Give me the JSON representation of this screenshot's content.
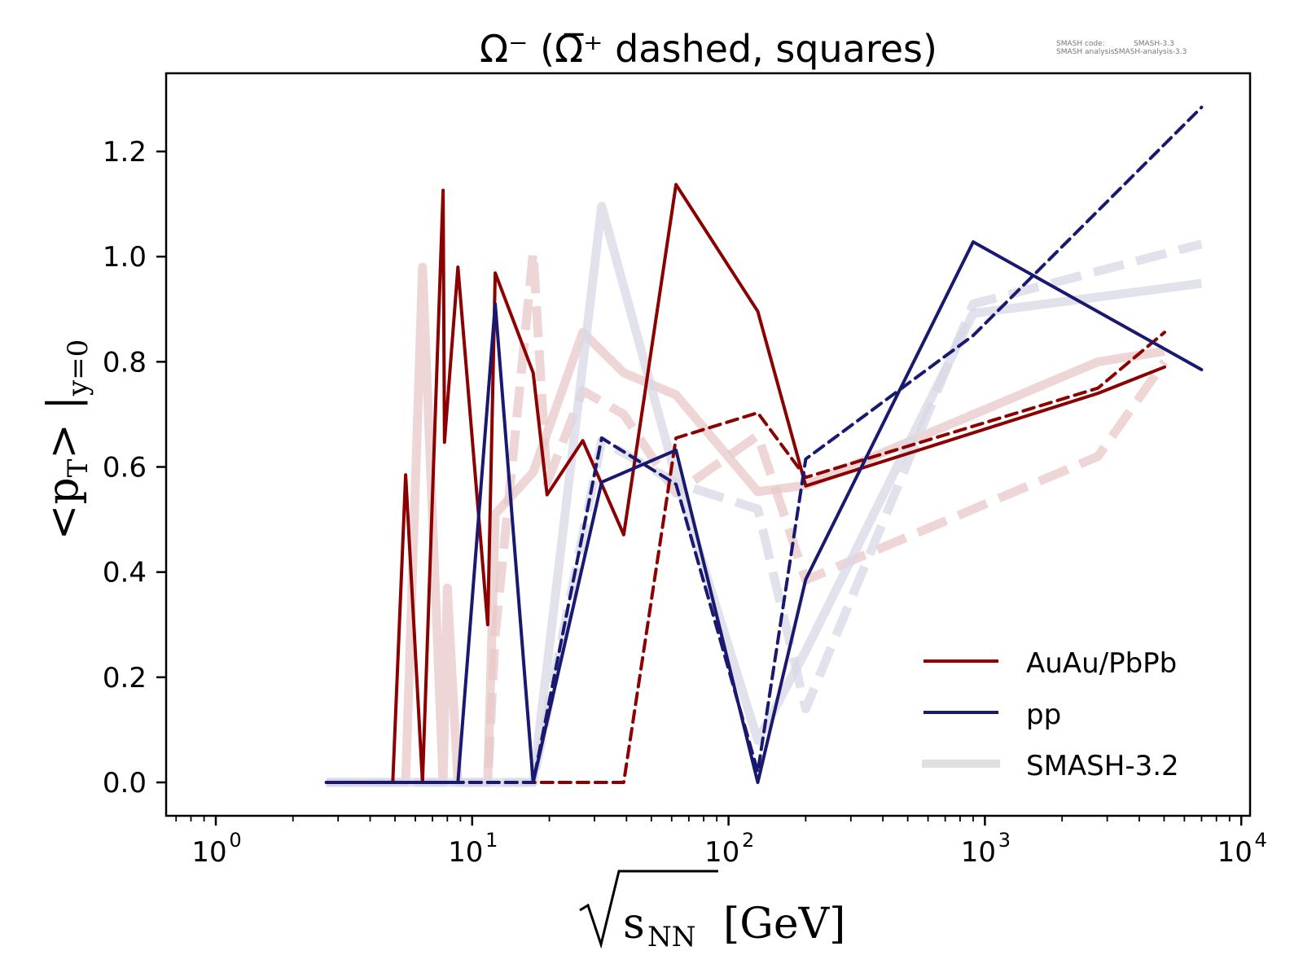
{
  "chart_data": {
    "type": "line",
    "title": "Ω⁻ (Ω̅⁺ dashed, squares)",
    "meta": {
      "line1_label": "SMASH code:",
      "line1_value": "SMASH-3.3",
      "line2_label": "SMASH analysis:",
      "line2_value": "SMASH-analysis-3.3"
    },
    "xlabel": {
      "main": "s",
      "sub": "NN",
      "unit": "[GeV]"
    },
    "ylabel": {
      "main": "<p",
      "sub1": "T",
      "mid": "> |",
      "sub2": "y=0"
    },
    "xscale": "log",
    "xlim": [
      0.7,
      10000
    ],
    "ylim": [
      -0.07,
      1.35
    ],
    "xticks": [
      {
        "value": 1,
        "base": "10",
        "exp": "0"
      },
      {
        "value": 10,
        "base": "10",
        "exp": "1"
      },
      {
        "value": 100,
        "base": "10",
        "exp": "2"
      },
      {
        "value": 1000,
        "base": "10",
        "exp": "3"
      },
      {
        "value": 10000,
        "base": "10",
        "exp": "4"
      }
    ],
    "yticks": [
      {
        "value": 0.0,
        "label": "0.0"
      },
      {
        "value": 0.2,
        "label": "0.2"
      },
      {
        "value": 0.4,
        "label": "0.4"
      },
      {
        "value": 0.6,
        "label": "0.6"
      },
      {
        "value": 0.8,
        "label": "0.8"
      },
      {
        "value": 1.0,
        "label": "1.0"
      },
      {
        "value": 1.2,
        "label": "1.2"
      }
    ],
    "grid": false,
    "legend_position": "lower-right",
    "legend": [
      {
        "label": "AuAu/PbPb",
        "color": "#8b0000",
        "style": "solid"
      },
      {
        "label": "pp",
        "color": "#191970",
        "style": "solid"
      },
      {
        "label": "SMASH-3.2",
        "color": "#e0e0e0",
        "style": "thick"
      }
    ],
    "series": [
      {
        "name": "SMASH-3.2 AuAu/PbPb Ω⁻",
        "group": "reference",
        "color": "#e8c8c8",
        "dashed": false,
        "points": [
          [
            2.7,
            0
          ],
          [
            4.9,
            0
          ],
          [
            5.5,
            0
          ],
          [
            6.4,
            0.98
          ],
          [
            7.7,
            0
          ],
          [
            8.0,
            0.37
          ],
          [
            8.8,
            0
          ],
          [
            11.5,
            0
          ],
          [
            12.3,
            0.51
          ],
          [
            17.3,
            0.59
          ],
          [
            27,
            0.856
          ],
          [
            39,
            0.779
          ],
          [
            62.4,
            0.737
          ],
          [
            130,
            0.553
          ],
          [
            200,
            0.565
          ],
          [
            2760,
            0.8
          ],
          [
            5020,
            0.82
          ]
        ]
      },
      {
        "name": "SMASH-3.2 AuAu/PbPb Ω̅⁺",
        "group": "reference",
        "color": "#e8c8c8",
        "dashed": true,
        "points": [
          [
            2.7,
            0
          ],
          [
            11.5,
            0
          ],
          [
            12.3,
            0.28
          ],
          [
            17.3,
            1.008
          ],
          [
            19.6,
            0.57
          ],
          [
            27,
            0.745
          ],
          [
            39,
            0.7
          ],
          [
            62.4,
            0.55
          ],
          [
            130,
            0.66
          ],
          [
            200,
            0.385
          ],
          [
            2760,
            0.62
          ],
          [
            5020,
            0.8
          ]
        ]
      },
      {
        "name": "SMASH-3.2 pp Ω⁻",
        "group": "reference",
        "color": "#d8d8e6",
        "dashed": false,
        "points": [
          [
            2.7,
            0
          ],
          [
            17.3,
            0
          ],
          [
            32,
            1.096
          ],
          [
            62.4,
            0.58
          ],
          [
            130,
            0.08
          ],
          [
            200,
            0.25
          ],
          [
            900,
            0.892
          ],
          [
            7000,
            0.949
          ]
        ]
      },
      {
        "name": "SMASH-3.2 pp Ω̅⁺",
        "group": "reference",
        "color": "#d8d8e6",
        "dashed": true,
        "points": [
          [
            2.7,
            0
          ],
          [
            17.3,
            0
          ],
          [
            32,
            0.65
          ],
          [
            62.4,
            0.57
          ],
          [
            130,
            0.52
          ],
          [
            200,
            0.14
          ],
          [
            900,
            0.91
          ],
          [
            7000,
            1.024
          ]
        ]
      },
      {
        "name": "AuAu/PbPb Ω⁻",
        "group": "main",
        "color": "#8b0000",
        "dashed": false,
        "points": [
          [
            2.7,
            0
          ],
          [
            4.9,
            0
          ],
          [
            5.5,
            0.585
          ],
          [
            6.4,
            0
          ],
          [
            7.7,
            1.126
          ],
          [
            7.8,
            0.647
          ],
          [
            8.8,
            0.98
          ],
          [
            11.5,
            0.3
          ],
          [
            12.3,
            0.969
          ],
          [
            17.3,
            0.779
          ],
          [
            19.6,
            0.547
          ],
          [
            27,
            0.65
          ],
          [
            39,
            0.471
          ],
          [
            62.4,
            1.137
          ],
          [
            130,
            0.896
          ],
          [
            200,
            0.564
          ],
          [
            2760,
            0.74
          ],
          [
            5020,
            0.79
          ]
        ]
      },
      {
        "name": "AuAu/PbPb Ω̅⁺",
        "group": "main",
        "color": "#8b0000",
        "dashed": true,
        "points": [
          [
            2.7,
            0
          ],
          [
            39,
            0
          ],
          [
            62.4,
            0.655
          ],
          [
            130,
            0.703
          ],
          [
            200,
            0.58
          ],
          [
            2760,
            0.75
          ],
          [
            5020,
            0.856
          ]
        ]
      },
      {
        "name": "pp Ω⁻",
        "group": "main",
        "color": "#191970",
        "dashed": false,
        "points": [
          [
            2.7,
            0
          ],
          [
            8.8,
            0
          ],
          [
            12.3,
            0.91
          ],
          [
            17.3,
            0
          ],
          [
            32,
            0.571
          ],
          [
            62.4,
            0.632
          ],
          [
            130,
            0
          ],
          [
            200,
            0.386
          ],
          [
            900,
            1.028
          ],
          [
            7000,
            0.785
          ]
        ]
      },
      {
        "name": "pp Ω̅⁺",
        "group": "main",
        "color": "#191970",
        "dashed": true,
        "points": [
          [
            2.7,
            0
          ],
          [
            17.3,
            0
          ],
          [
            32,
            0.655
          ],
          [
            62.4,
            0.567
          ],
          [
            130,
            0.02
          ],
          [
            200,
            0.615
          ],
          [
            900,
            0.85
          ],
          [
            7000,
            1.284
          ]
        ]
      }
    ]
  }
}
